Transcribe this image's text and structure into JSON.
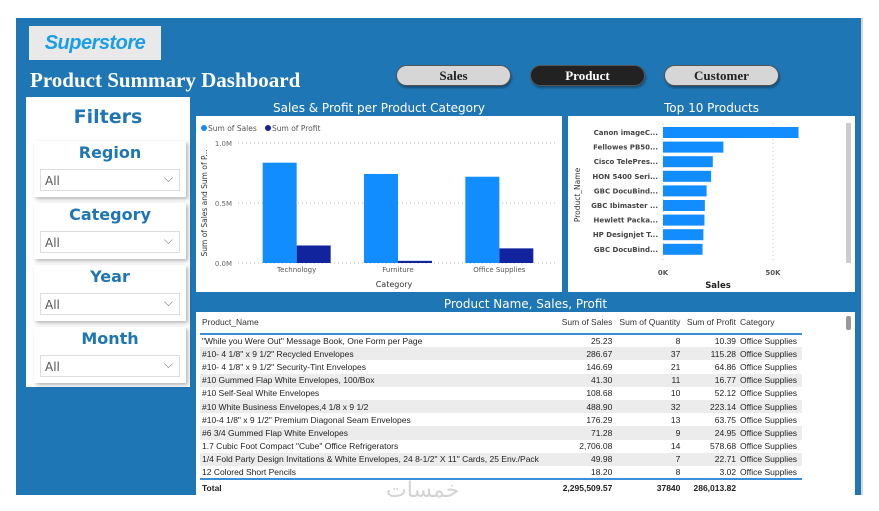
{
  "header": {
    "logo": "Superstore",
    "title": "Product Summary Dashboard",
    "nav": [
      {
        "label": "Sales",
        "active": false
      },
      {
        "label": "Product",
        "active": true
      },
      {
        "label": "Customer",
        "active": false
      }
    ]
  },
  "filters": {
    "title": "Filters",
    "slicers": [
      {
        "label": "Region",
        "value": "All"
      },
      {
        "label": "Category",
        "value": "All"
      },
      {
        "label": "Year",
        "value": "All"
      },
      {
        "label": "Month",
        "value": "All"
      }
    ]
  },
  "colors": {
    "brand": "#1f76b4",
    "sales": "#118dff",
    "profit": "#12239e"
  },
  "chart_data": [
    {
      "type": "bar",
      "title": "Sales & Profit per Product Category",
      "xlabel": "Category",
      "ylabel": "Sum of Sales and Sum of P...",
      "ylim": [
        0,
        1000000
      ],
      "yticks": [
        "0.0M",
        "0.5M",
        "1.0M"
      ],
      "legend": "top-left",
      "categories": [
        "Technology",
        "Furniture",
        "Office Supplies"
      ],
      "series": [
        {
          "name": "Sum of Sales",
          "values": [
            836000,
            742000,
            719000
          ]
        },
        {
          "name": "Sum of Profit",
          "values": [
            146000,
            18000,
            122000
          ]
        }
      ]
    },
    {
      "type": "bar",
      "orientation": "horizontal",
      "title": "Top 10 Products",
      "xlabel": "Sales",
      "ylabel": "Product_Name",
      "xlim": [
        0,
        65000
      ],
      "xticks": [
        "0K",
        "50K"
      ],
      "categories": [
        "Canon imageC...",
        "Fellowes PB50...",
        "Cisco TelePres...",
        "HON 5400 Seri...",
        "GBC DocuBind...",
        "GBC Ibimaster ...",
        "Hewlett Packa...",
        "HP Designjet T...",
        "GBC DocuBind..."
      ],
      "values": [
        61600,
        27450,
        22640,
        21870,
        19820,
        19020,
        18840,
        18370,
        17970
      ]
    }
  ],
  "table": {
    "title": "Product Name, Sales, Profit",
    "columns": [
      "Product_Name",
      "Sum of Sales",
      "Sum of Quantity",
      "Sum of Profit",
      "Category"
    ],
    "rows": [
      [
        "\"While you Were Out\" Message Book, One Form per Page",
        "25.23",
        "8",
        "10.39",
        "Office Supplies"
      ],
      [
        "#10- 4 1/8\" x 9 1/2\" Recycled Envelopes",
        "286.67",
        "37",
        "115.28",
        "Office Supplies"
      ],
      [
        "#10- 4 1/8\" x 9 1/2\" Security-Tint Envelopes",
        "146.69",
        "21",
        "64.86",
        "Office Supplies"
      ],
      [
        "#10 Gummed Flap White Envelopes, 100/Box",
        "41.30",
        "11",
        "16.77",
        "Office Supplies"
      ],
      [
        "#10 Self-Seal White Envelopes",
        "108.68",
        "10",
        "52.12",
        "Office Supplies"
      ],
      [
        "#10 White Business Envelopes,4 1/8 x 9 1/2",
        "488.90",
        "32",
        "223.14",
        "Office Supplies"
      ],
      [
        "#10-4 1/8\" x 9 1/2\" Premium Diagonal Seam Envelopes",
        "176.29",
        "13",
        "63.75",
        "Office Supplies"
      ],
      [
        "#6 3/4 Gummed Flap White Envelopes",
        "71.28",
        "9",
        "24.95",
        "Office Supplies"
      ],
      [
        "1.7 Cubic Foot Compact \"Cube\" Office Refrigerators",
        "2,706.08",
        "14",
        "578.68",
        "Office Supplies"
      ],
      [
        "1/4 Fold Party Design Invitations & White Envelopes, 24 8-1/2\" X 11\" Cards, 25 Env./Pack",
        "49.98",
        "7",
        "22.71",
        "Office Supplies"
      ],
      [
        "12 Colored Short Pencils",
        "18.20",
        "8",
        "3.02",
        "Office Supplies"
      ]
    ],
    "total": [
      "Total",
      "2,295,509.57",
      "37840",
      "286,013.82",
      ""
    ]
  },
  "watermark": "خمسات"
}
